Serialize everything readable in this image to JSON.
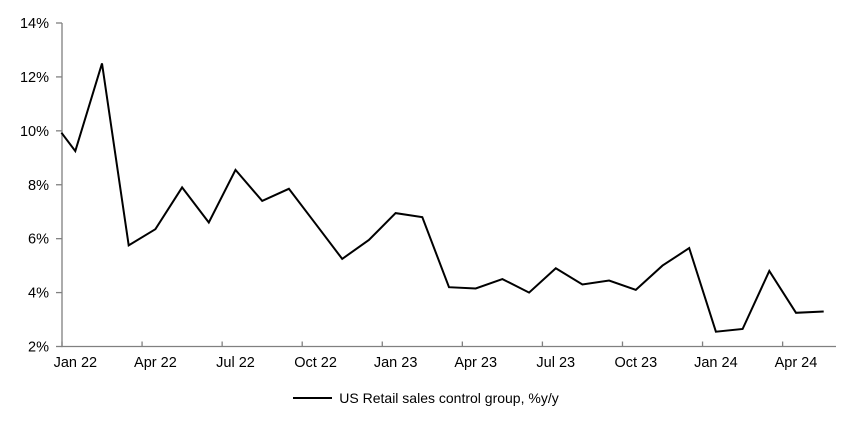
{
  "chart_data": {
    "type": "line",
    "title": "",
    "legend_position": "bottom",
    "grid": false,
    "background_color": "#ffffff",
    "axis_color": "#808080",
    "text_color": "#000000",
    "ylim": [
      2,
      14
    ],
    "y_tick_step": 2,
    "y_tick_labels": [
      "2%",
      "4%",
      "6%",
      "8%",
      "10%",
      "12%",
      "14%"
    ],
    "y_tick_values": [
      2,
      4,
      6,
      8,
      10,
      12,
      14
    ],
    "x_quarter_tick_labels": [
      "Jan 22",
      "Apr 22",
      "Jul 22",
      "Oct 22",
      "Jan 23",
      "Apr 23",
      "Jul 23",
      "Oct 23",
      "Jan 24",
      "Apr 24"
    ],
    "x_quarter_tick_month_index": [
      0,
      3,
      6,
      9,
      12,
      15,
      18,
      21,
      24,
      27
    ],
    "categories": [
      "Jan 22",
      "Feb 22",
      "Mar 22",
      "Apr 22",
      "May 22",
      "Jun 22",
      "Jul 22",
      "Aug 22",
      "Sep 22",
      "Oct 22",
      "Nov 22",
      "Dec 22",
      "Jan 23",
      "Feb 23",
      "Mar 23",
      "Apr 23",
      "May 23",
      "Jun 23",
      "Jul 23",
      "Aug 23",
      "Sep 23",
      "Oct 23",
      "Nov 23",
      "Dec 23",
      "Jan 24",
      "Feb 24",
      "Mar 24",
      "Apr 24",
      "May 24"
    ],
    "series": [
      {
        "name": "US Retail sales control group, %y/y",
        "color": "#000000",
        "line_width": 2,
        "values": [
          9.25,
          12.5,
          5.75,
          6.35,
          7.9,
          6.6,
          8.55,
          7.4,
          7.85,
          6.55,
          5.25,
          5.95,
          6.95,
          6.8,
          4.2,
          4.15,
          4.5,
          4.0,
          4.9,
          4.3,
          4.45,
          4.1,
          5.0,
          5.65,
          2.55,
          2.65,
          4.8,
          3.25,
          3.3
        ],
        "left_edge_entry_value": 9.9
      }
    ]
  }
}
